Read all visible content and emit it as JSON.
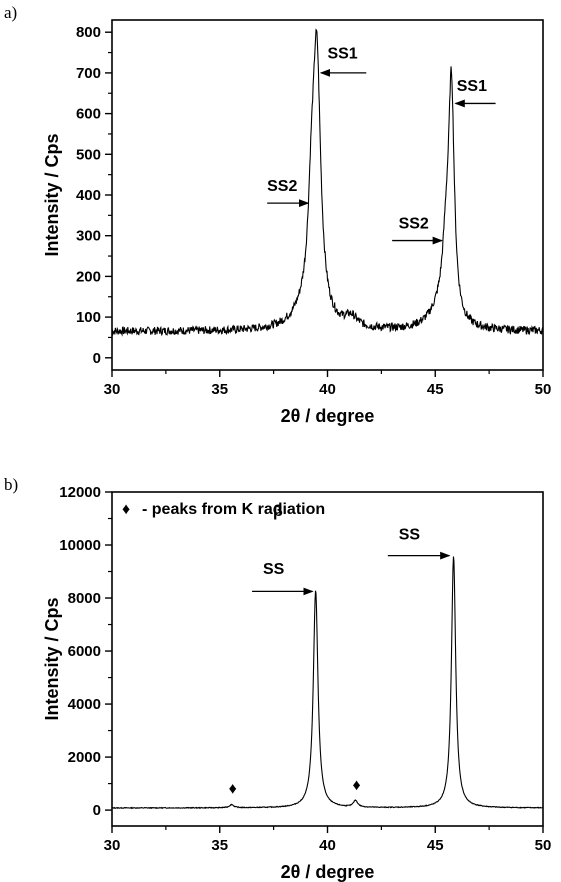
{
  "chart_data": [
    {
      "panel_label": "a)",
      "type": "line",
      "xlabel": "2θ / degree",
      "ylabel": "Intensity / Cps",
      "xlim": [
        30,
        50
      ],
      "ylim": [
        -30,
        830
      ],
      "xticks": [
        30,
        35,
        40,
        45,
        50
      ],
      "yticks": [
        0,
        100,
        200,
        300,
        400,
        500,
        600,
        700,
        800
      ],
      "grid": false,
      "baseline": 65,
      "noise": 10,
      "peaks": [
        {
          "center": 39.5,
          "height": 640,
          "width": 0.22
        },
        {
          "center": 39.25,
          "height": 190,
          "width": 0.18
        },
        {
          "center": 39.0,
          "height": 40,
          "width": 0.7
        },
        {
          "center": 41.1,
          "height": 25,
          "width": 0.35
        },
        {
          "center": 45.75,
          "height": 560,
          "width": 0.16
        },
        {
          "center": 45.5,
          "height": 150,
          "width": 0.2
        },
        {
          "center": 45.2,
          "height": 40,
          "width": 0.6
        }
      ],
      "annotations": [
        {
          "text": "SS1",
          "x": 40.7,
          "y": 735,
          "arrow_from": [
            41.8,
            700
          ],
          "arrow_to": [
            39.7,
            700
          ]
        },
        {
          "text": "SS2",
          "x": 37.9,
          "y": 410,
          "arrow_from": [
            37.2,
            380
          ],
          "arrow_to": [
            39.1,
            380
          ]
        },
        {
          "text": "SS1",
          "x": 46.7,
          "y": 655,
          "arrow_from": [
            47.8,
            625
          ],
          "arrow_to": [
            45.95,
            625
          ]
        },
        {
          "text": "SS2",
          "x": 44.0,
          "y": 318,
          "arrow_from": [
            43.0,
            288
          ],
          "arrow_to": [
            45.3,
            288
          ]
        }
      ]
    },
    {
      "panel_label": "b)",
      "type": "line",
      "xlabel": "2θ / degree",
      "ylabel": "Intensity / Cps",
      "xlim": [
        30,
        50
      ],
      "ylim": [
        -600,
        12000
      ],
      "xticks": [
        30,
        35,
        40,
        45,
        50
      ],
      "yticks": [
        0,
        2000,
        4000,
        6000,
        8000,
        10000,
        12000
      ],
      "grid": false,
      "baseline": 80,
      "noise": 15,
      "peaks": [
        {
          "center": 39.45,
          "height": 8200,
          "width": 0.13
        },
        {
          "center": 45.85,
          "height": 9500,
          "width": 0.12
        },
        {
          "center": 35.55,
          "height": 120,
          "width": 0.12
        },
        {
          "center": 41.3,
          "height": 250,
          "width": 0.12
        }
      ],
      "legend": {
        "marker": "♦",
        "text": "- peaks from  K radiation",
        "beta_symbol": "β"
      },
      "markers": [
        {
          "symbol": "♦",
          "x": 35.6,
          "y": 850
        },
        {
          "symbol": "♦",
          "x": 41.35,
          "y": 980
        }
      ],
      "annotations": [
        {
          "text": "SS",
          "x": 37.5,
          "y": 8900,
          "arrow_from": [
            36.5,
            8250
          ],
          "arrow_to": [
            39.3,
            8250
          ]
        },
        {
          "text": "SS",
          "x": 43.8,
          "y": 10200,
          "arrow_from": [
            42.8,
            9600
          ],
          "arrow_to": [
            45.65,
            9600
          ]
        }
      ]
    }
  ]
}
